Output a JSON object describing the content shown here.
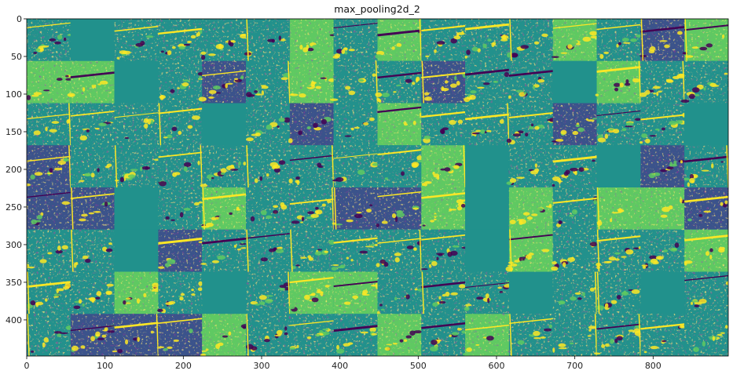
{
  "chart_data": {
    "type": "heatmap",
    "title": "max_pooling2d_2",
    "xlabel": "",
    "ylabel": "",
    "xlim": [
      0,
      896
    ],
    "ylim": [
      448,
      0
    ],
    "grid": false,
    "colormap": "viridis",
    "tile_grid": {
      "rows": 8,
      "cols": 16
    },
    "x_ticks": [
      0,
      100,
      200,
      300,
      400,
      500,
      600,
      700,
      800
    ],
    "y_ticks": [
      0,
      50,
      100,
      150,
      200,
      250,
      300,
      350,
      400
    ],
    "colors": {
      "low": "#440154",
      "mid_low": "#3b528b",
      "mid": "#21918c",
      "mid_high": "#5ec962",
      "high": "#fde725",
      "axes": "#000000"
    }
  }
}
